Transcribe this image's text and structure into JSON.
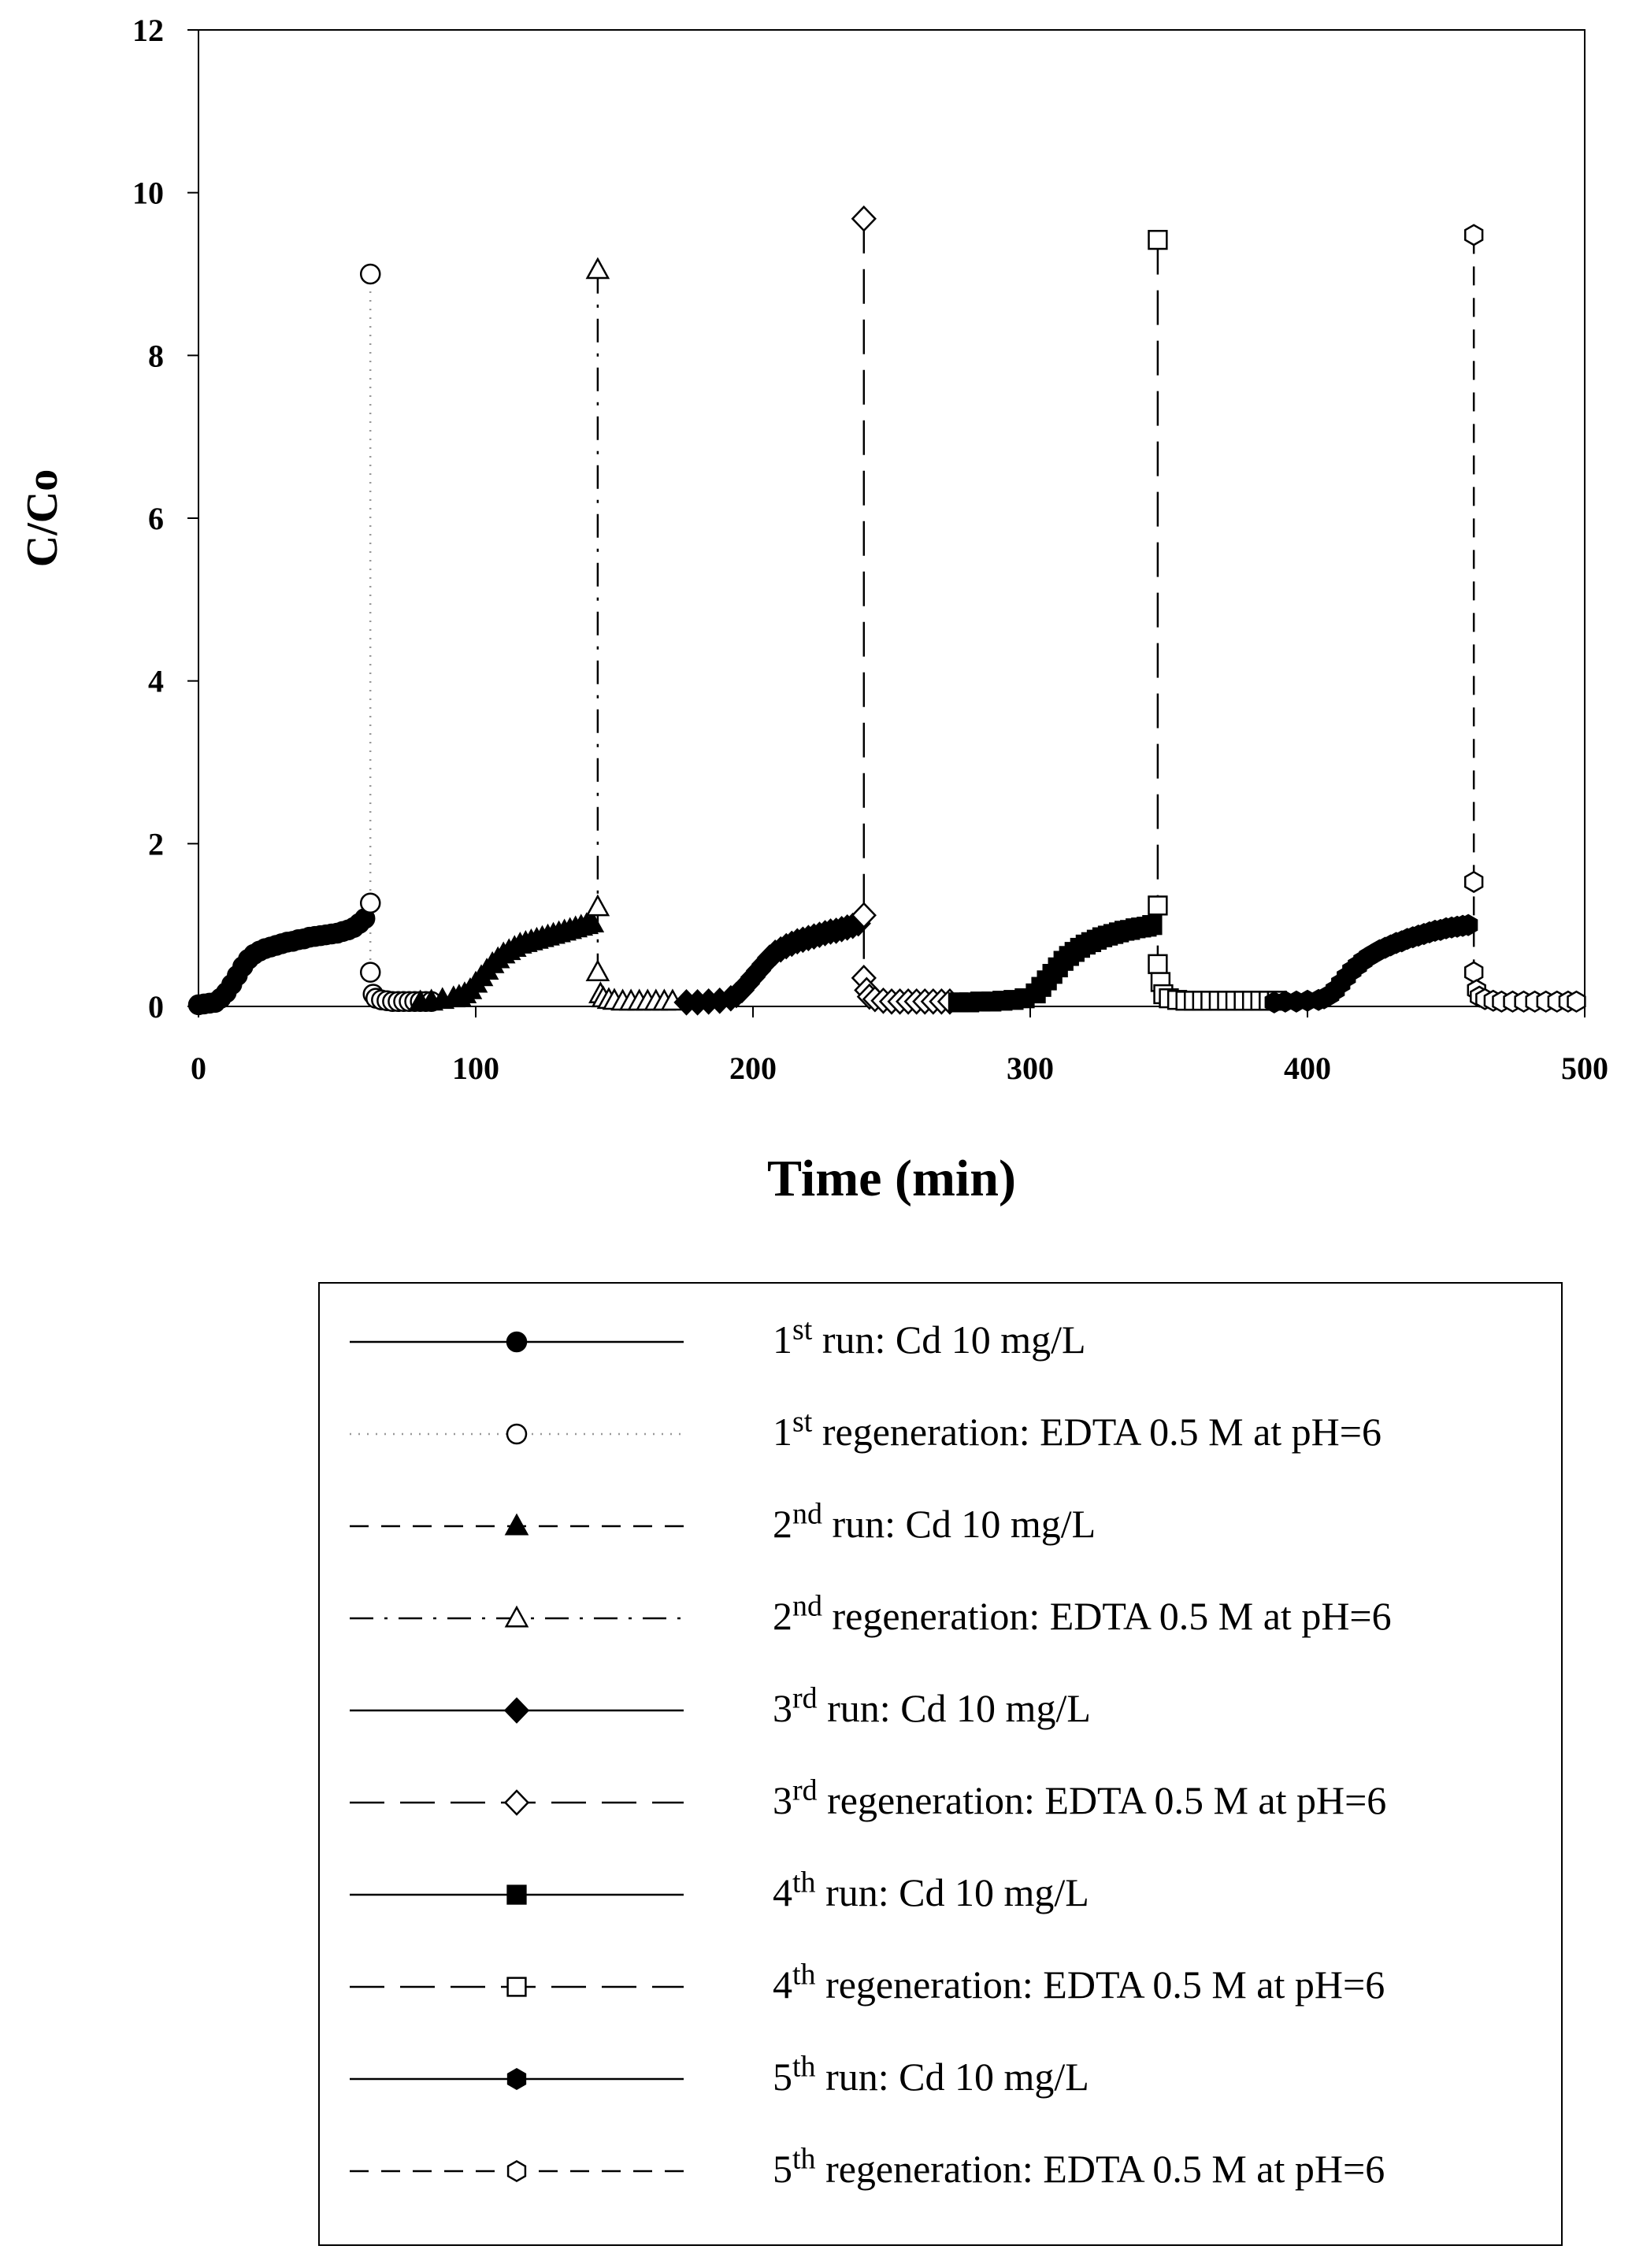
{
  "chart_data": {
    "type": "scatter",
    "title": "",
    "xlabel": "Time (min)",
    "ylabel": "C/Co",
    "xlim": [
      0,
      500
    ],
    "ylim": [
      0,
      12
    ],
    "xticks": [
      "0",
      "100",
      "200",
      "300",
      "400",
      "500"
    ],
    "yticks": [
      "0",
      "2",
      "4",
      "6",
      "8",
      "10",
      "12"
    ],
    "legend_position": "bottom",
    "series": [
      {
        "name": "1st run: Cd 10 mg/L",
        "ordinal": "1",
        "suffix": "st",
        "rest": "run: Cd 10 mg/L",
        "marker": "circle",
        "filled": true,
        "line": "solid",
        "x": [
          0,
          2,
          4,
          6,
          8,
          10,
          12,
          14,
          16,
          18,
          20,
          22,
          24,
          26,
          28,
          30,
          32,
          34,
          36,
          38,
          40,
          42,
          44,
          46,
          48,
          50,
          52,
          54,
          56,
          58,
          60
        ],
        "y": [
          0.02,
          0.03,
          0.04,
          0.05,
          0.1,
          0.17,
          0.27,
          0.38,
          0.49,
          0.58,
          0.64,
          0.68,
          0.71,
          0.73,
          0.75,
          0.77,
          0.79,
          0.8,
          0.82,
          0.83,
          0.85,
          0.86,
          0.87,
          0.88,
          0.89,
          0.9,
          0.92,
          0.94,
          0.97,
          1.02,
          1.08
        ]
      },
      {
        "name": "1st regeneration: EDTA 0.5 M at pH=6",
        "ordinal": "1",
        "suffix": "st",
        "rest": "regeneration: EDTA 0.5 M at pH=6",
        "marker": "circle",
        "filled": false,
        "line": "dotted",
        "x": [
          62,
          62,
          62,
          63,
          64,
          66,
          68,
          70,
          72,
          74,
          76,
          78,
          80,
          82,
          84
        ],
        "y": [
          9.0,
          1.27,
          0.42,
          0.15,
          0.1,
          0.08,
          0.07,
          0.06,
          0.06,
          0.06,
          0.06,
          0.06,
          0.06,
          0.06,
          0.06
        ]
      },
      {
        "name": "2nd run: Cd 10 mg/L",
        "ordinal": "2",
        "suffix": "nd",
        "rest": "run: Cd 10 mg/L",
        "marker": "triangle",
        "filled": true,
        "line": "dashed",
        "x": [
          80,
          84,
          88,
          92,
          94,
          96,
          98,
          100,
          102,
          104,
          106,
          108,
          110,
          112,
          114,
          116,
          118,
          120,
          122,
          124,
          126,
          128,
          130,
          132,
          134,
          136,
          138,
          140,
          142
        ],
        "y": [
          0.05,
          0.06,
          0.08,
          0.1,
          0.12,
          0.15,
          0.2,
          0.28,
          0.36,
          0.44,
          0.52,
          0.58,
          0.64,
          0.68,
          0.72,
          0.76,
          0.78,
          0.8,
          0.82,
          0.84,
          0.86,
          0.88,
          0.9,
          0.92,
          0.94,
          0.96,
          0.98,
          1.0,
          1.02
        ]
      },
      {
        "name": "2nd regeneration: EDTA 0.5 M at pH=6",
        "ordinal": "2",
        "suffix": "nd",
        "rest": "regeneration: EDTA 0.5 M at pH=6",
        "marker": "triangle",
        "filled": false,
        "line": "dashdot",
        "x": [
          144,
          144,
          144,
          145,
          146,
          148,
          150,
          153,
          156,
          159,
          162,
          165,
          168,
          171
        ],
        "y": [
          9.05,
          1.22,
          0.42,
          0.15,
          0.1,
          0.08,
          0.07,
          0.06,
          0.06,
          0.06,
          0.06,
          0.06,
          0.06,
          0.06
        ]
      },
      {
        "name": "3rd run: Cd 10 mg/L",
        "ordinal": "3",
        "suffix": "rd",
        "rest": "run: Cd 10 mg/L",
        "marker": "diamond",
        "filled": true,
        "line": "solid",
        "x": [
          176,
          180,
          184,
          188,
          192,
          194,
          196,
          198,
          200,
          202,
          204,
          206,
          208,
          210,
          212,
          214,
          216,
          218,
          220,
          222,
          224,
          226,
          228,
          230,
          232,
          234,
          236,
          238
        ],
        "y": [
          0.05,
          0.05,
          0.06,
          0.07,
          0.1,
          0.14,
          0.2,
          0.28,
          0.36,
          0.44,
          0.52,
          0.6,
          0.66,
          0.7,
          0.74,
          0.77,
          0.8,
          0.82,
          0.84,
          0.86,
          0.88,
          0.9,
          0.92,
          0.93,
          0.95,
          0.97,
          0.99,
          1.02
        ]
      },
      {
        "name": "3rd regeneration: EDTA 0.5 M at pH=6",
        "ordinal": "3",
        "suffix": "rd",
        "rest": "regeneration: EDTA 0.5 M at pH=6",
        "marker": "diamond",
        "filled": false,
        "line": "longdash",
        "x": [
          240,
          240,
          240,
          241,
          242,
          244,
          247,
          250,
          253,
          256,
          259,
          262,
          265,
          268,
          271
        ],
        "y": [
          9.68,
          1.12,
          0.35,
          0.2,
          0.12,
          0.09,
          0.07,
          0.06,
          0.06,
          0.06,
          0.06,
          0.06,
          0.06,
          0.06,
          0.06
        ]
      },
      {
        "name": "4th run: Cd 10 mg/L",
        "ordinal": "4",
        "suffix": "th",
        "rest": "run: Cd 10 mg/L",
        "marker": "square",
        "filled": true,
        "line": "solid",
        "x": [
          274,
          278,
          282,
          286,
          290,
          294,
          298,
          302,
          304,
          306,
          308,
          310,
          312,
          314,
          316,
          318,
          320,
          322,
          324,
          326,
          328,
          330,
          332,
          334,
          336,
          338,
          340,
          342,
          344
        ],
        "y": [
          0.05,
          0.05,
          0.06,
          0.06,
          0.07,
          0.08,
          0.1,
          0.16,
          0.24,
          0.32,
          0.4,
          0.48,
          0.56,
          0.62,
          0.67,
          0.72,
          0.76,
          0.79,
          0.82,
          0.85,
          0.87,
          0.89,
          0.91,
          0.93,
          0.94,
          0.96,
          0.97,
          0.98,
          1.0
        ]
      },
      {
        "name": "4th regeneration: EDTA 0.5 M at pH=6",
        "ordinal": "4",
        "suffix": "th",
        "rest": "regeneration: EDTA 0.5 M at pH=6",
        "marker": "square",
        "filled": false,
        "line": "longdash",
        "x": [
          346,
          346,
          346,
          347,
          348,
          350,
          353,
          356,
          359,
          362,
          365,
          368,
          371,
          374,
          377,
          380,
          383,
          386,
          389
        ],
        "y": [
          9.42,
          1.24,
          0.52,
          0.3,
          0.15,
          0.1,
          0.08,
          0.07,
          0.07,
          0.07,
          0.07,
          0.07,
          0.07,
          0.07,
          0.07,
          0.07,
          0.07,
          0.07,
          0.07
        ]
      },
      {
        "name": "5th run: Cd 10 mg/L",
        "ordinal": "5",
        "suffix": "th",
        "rest": "run: Cd 10 mg/L",
        "marker": "hexagon",
        "filled": true,
        "line": "solid",
        "x": [
          388,
          392,
          396,
          400,
          404,
          406,
          408,
          410,
          412,
          414,
          416,
          418,
          420,
          422,
          424,
          426,
          428,
          430,
          432,
          434,
          436,
          438,
          440,
          442,
          444,
          446,
          448,
          450,
          452,
          454,
          456,
          458
        ],
        "y": [
          0.05,
          0.06,
          0.06,
          0.07,
          0.08,
          0.1,
          0.14,
          0.2,
          0.28,
          0.36,
          0.44,
          0.5,
          0.56,
          0.61,
          0.65,
          0.69,
          0.72,
          0.75,
          0.78,
          0.8,
          0.83,
          0.85,
          0.87,
          0.89,
          0.91,
          0.93,
          0.94,
          0.96,
          0.97,
          0.98,
          0.99,
          1.0
        ]
      },
      {
        "name": "5th regeneration: EDTA 0.5 M at pH=6",
        "ordinal": "5",
        "suffix": "th",
        "rest": "regeneration: EDTA 0.5 M at pH=6",
        "marker": "hexagon",
        "filled": false,
        "line": "dashed",
        "x": [
          460,
          460,
          460,
          461,
          462,
          464,
          467,
          470,
          474,
          478,
          482,
          486,
          490,
          494,
          497
        ],
        "y": [
          9.48,
          1.53,
          0.42,
          0.2,
          0.12,
          0.09,
          0.07,
          0.06,
          0.06,
          0.06,
          0.06,
          0.06,
          0.06,
          0.06,
          0.06
        ]
      }
    ]
  }
}
